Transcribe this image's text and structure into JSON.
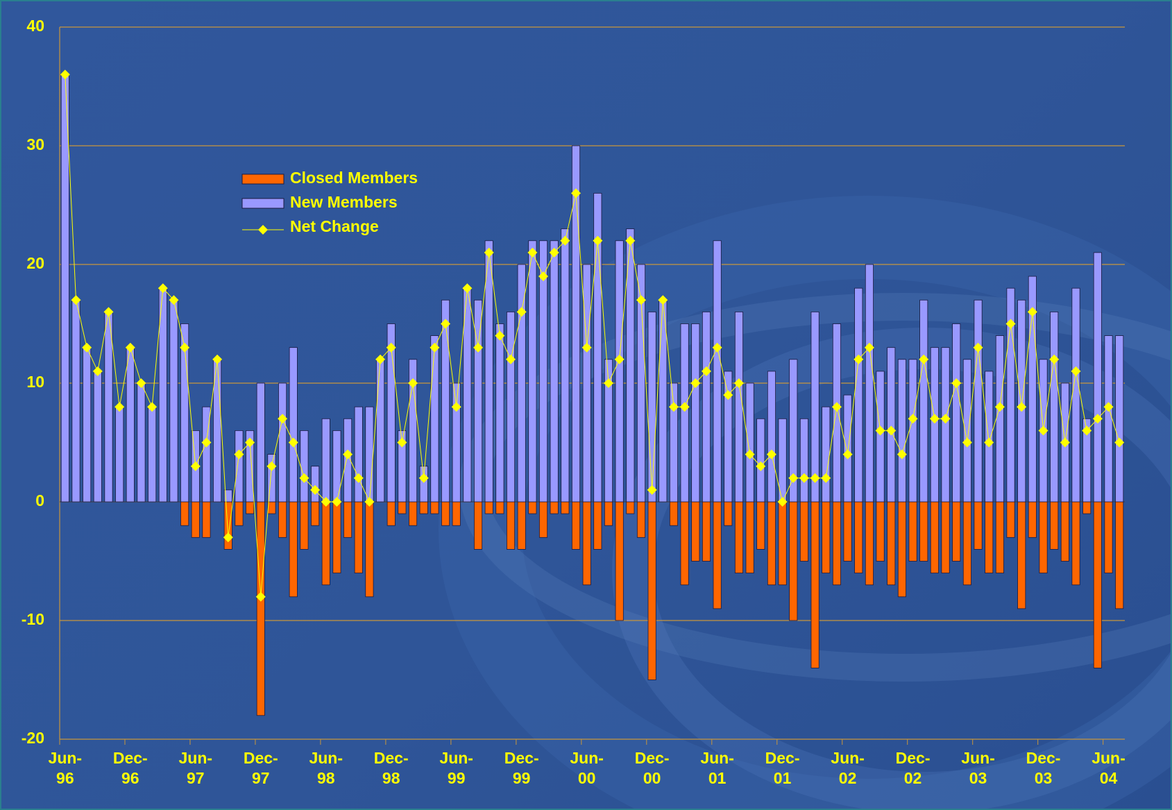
{
  "chart_data": {
    "type": "bar-line",
    "categories": [
      "Jun-96",
      null,
      null,
      null,
      null,
      null,
      "Dec-96",
      null,
      null,
      null,
      null,
      null,
      "Jun-97",
      null,
      null,
      null,
      null,
      null,
      "Dec-97",
      null,
      null,
      null,
      null,
      null,
      "Jun-98",
      null,
      null,
      null,
      null,
      null,
      "Dec-98",
      null,
      null,
      null,
      null,
      null,
      "Jun-99",
      null,
      null,
      null,
      null,
      null,
      "Dec-99",
      null,
      null,
      null,
      null,
      null,
      "Jun-00",
      null,
      null,
      null,
      null,
      null,
      "Dec-00",
      null,
      null,
      null,
      null,
      null,
      "Jun-01",
      null,
      null,
      null,
      null,
      null,
      "Dec-01",
      null,
      null,
      null,
      null,
      null,
      "Jun-02",
      null,
      null,
      null,
      null,
      null,
      "Dec-02",
      null,
      null,
      null,
      null,
      null,
      "Jun-03",
      null,
      null,
      null,
      null,
      null,
      "Dec-03",
      null,
      null,
      null,
      null,
      null,
      "Jun-04",
      null
    ],
    "series": [
      {
        "name": "Closed Members",
        "kind": "bar",
        "color": "#ff6600",
        "values": [
          0,
          0,
          0,
          0,
          0,
          0,
          0,
          0,
          0,
          0,
          0,
          -2,
          -3,
          -3,
          0,
          -4,
          -2,
          -1,
          -18,
          -1,
          -3,
          -8,
          -4,
          -2,
          -7,
          -6,
          -3,
          -6,
          -8,
          0,
          -2,
          -1,
          -2,
          -1,
          -1,
          -2,
          -2,
          0,
          -4,
          -1,
          -1,
          -4,
          -4,
          -1,
          -3,
          -1,
          -1,
          -4,
          -7,
          -4,
          -2,
          -10,
          -1,
          -3,
          -15,
          0,
          -2,
          -7,
          -5,
          -5,
          -9,
          -2,
          -6,
          -6,
          -4,
          -7,
          -7,
          -10,
          -5,
          -14,
          -6,
          -7,
          -5,
          -6,
          -7,
          -5,
          -7,
          -8,
          -5,
          -5,
          -6,
          -6,
          -5,
          -7,
          -4,
          -6,
          -6,
          -3,
          -9,
          -3,
          -6,
          -4,
          -5,
          -7,
          -1,
          -14,
          -6,
          -9
        ]
      },
      {
        "name": "New Members",
        "kind": "bar",
        "color": "#9999ff",
        "values": [
          36,
          17,
          13,
          11,
          16,
          8,
          13,
          10,
          8,
          18,
          17,
          15,
          6,
          8,
          12,
          1,
          6,
          6,
          10,
          4,
          10,
          13,
          6,
          3,
          7,
          6,
          7,
          8,
          8,
          12,
          15,
          6,
          12,
          3,
          14,
          17,
          10,
          18,
          17,
          22,
          15,
          16,
          20,
          22,
          22,
          22,
          23,
          30,
          20,
          26,
          12,
          22,
          23,
          20,
          16,
          17,
          10,
          15,
          15,
          16,
          22,
          11,
          16,
          10,
          7,
          11,
          7,
          12,
          7,
          16,
          8,
          15,
          9,
          18,
          20,
          11,
          13,
          12,
          12,
          17,
          13,
          13,
          15,
          12,
          17,
          11,
          14,
          18,
          17,
          19,
          12,
          16,
          10,
          18,
          7,
          21,
          14,
          14
        ]
      },
      {
        "name": "Net Change",
        "kind": "line",
        "color": "#ffff00",
        "values": [
          36,
          17,
          13,
          11,
          16,
          8,
          13,
          10,
          8,
          18,
          17,
          13,
          3,
          5,
          12,
          -3,
          4,
          5,
          -8,
          3,
          7,
          5,
          2,
          1,
          0,
          0,
          4,
          2,
          0,
          12,
          13,
          5,
          10,
          2,
          13,
          15,
          8,
          18,
          13,
          21,
          14,
          12,
          16,
          21,
          19,
          21,
          22,
          26,
          13,
          22,
          10,
          12,
          22,
          17,
          1,
          17,
          8,
          8,
          10,
          11,
          13,
          9,
          10,
          4,
          3,
          4,
          0,
          2,
          2,
          2,
          2,
          8,
          4,
          12,
          13,
          6,
          6,
          4,
          7,
          12,
          7,
          7,
          10,
          5,
          13,
          5,
          8,
          15,
          8,
          16,
          6,
          12,
          5,
          11,
          6,
          7,
          8,
          5
        ]
      }
    ],
    "ylim": [
      -20,
      40
    ],
    "yticks": [
      -20,
      -10,
      0,
      10,
      20,
      30,
      40
    ],
    "grid": true,
    "grid_color": "#c8963c"
  }
}
